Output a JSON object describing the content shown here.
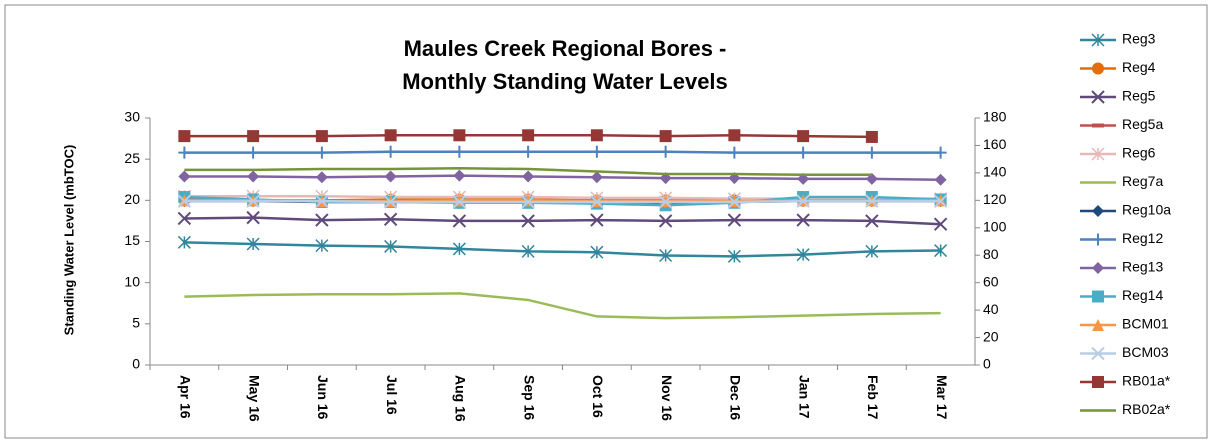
{
  "chart_data": {
    "type": "line",
    "title": [
      "Maules Creek Regional Bores -",
      "Monthly Standing Water Levels"
    ],
    "y_label": "Standing Water Level (mbTOC)",
    "categories": [
      "Apr 16",
      "May 16",
      "Jun 16",
      "Jul 16",
      "Aug 16",
      "Sep 16",
      "Oct 16",
      "Nov 16",
      "Dec 16",
      "Jan 17",
      "Feb 17",
      "Mar 17"
    ],
    "ylim": [
      0,
      30
    ],
    "yticks": [
      0,
      5,
      10,
      15,
      20,
      25,
      30
    ],
    "y2lim": [
      0,
      180
    ],
    "y2ticks": [
      0,
      20,
      40,
      60,
      80,
      100,
      120,
      140,
      160,
      180
    ],
    "grid": false,
    "legend": "right",
    "series": [
      {
        "name": "Reg3",
        "color": "#31859c",
        "marker": "star",
        "values": [
          14.9,
          14.7,
          14.5,
          14.4,
          14.1,
          13.8,
          13.7,
          13.3,
          13.2,
          13.4,
          13.8,
          13.9
        ]
      },
      {
        "name": "Reg4",
        "color": "#e46c0a",
        "marker": "circle",
        "values": [
          20.1,
          20.0,
          20.0,
          20.1,
          20.1,
          20.1,
          20.0,
          20.0,
          20.0,
          20.0,
          20.0,
          20.0
        ]
      },
      {
        "name": "Reg5",
        "color": "#604a7b",
        "marker": "x",
        "values": [
          17.8,
          17.9,
          17.6,
          17.7,
          17.5,
          17.5,
          17.6,
          17.5,
          17.6,
          17.6,
          17.5,
          17.1
        ]
      },
      {
        "name": "Reg5a",
        "color": "#c0504d",
        "marker": "dash",
        "values": [
          null,
          null,
          null,
          null,
          null,
          null,
          null,
          null,
          null,
          null,
          null,
          null
        ]
      },
      {
        "name": "Reg6",
        "color": "#e6b9b8",
        "marker": "star",
        "values": [
          20.5,
          20.5,
          20.5,
          20.4,
          20.4,
          20.4,
          20.3,
          20.3,
          20.2,
          20.2,
          20.2,
          20.2
        ]
      },
      {
        "name": "Reg7a",
        "color": "#9bbb59",
        "marker": "none",
        "values": [
          8.3,
          8.5,
          8.6,
          8.6,
          8.7,
          7.9,
          5.9,
          5.7,
          5.8,
          6.0,
          6.2,
          6.3
        ]
      },
      {
        "name": "Reg10a",
        "color": "#1f497d",
        "marker": "diamond",
        "values": [
          19.9,
          19.9,
          19.8,
          19.8,
          19.8,
          19.8,
          19.7,
          19.7,
          19.8,
          19.9,
          19.9,
          19.9
        ]
      },
      {
        "name": "Reg12",
        "color": "#4f81bd",
        "marker": "plus",
        "values": [
          25.8,
          25.8,
          25.8,
          25.9,
          25.9,
          25.9,
          25.9,
          25.9,
          25.8,
          25.8,
          25.8,
          25.8
        ]
      },
      {
        "name": "Reg13",
        "color": "#8064a2",
        "marker": "diamond",
        "values": [
          22.9,
          22.9,
          22.8,
          22.9,
          23.0,
          22.9,
          22.8,
          22.7,
          22.7,
          22.6,
          22.6,
          22.5
        ]
      },
      {
        "name": "Reg14",
        "color": "#4bacc6",
        "marker": "square",
        "values": [
          20.4,
          20.1,
          19.8,
          19.8,
          19.7,
          19.7,
          19.6,
          19.4,
          19.7,
          20.4,
          20.4,
          20.1
        ]
      },
      {
        "name": "BCM01",
        "color": "#f79646",
        "marker": "triangle",
        "values": [
          20.0,
          20.0,
          19.9,
          19.9,
          20.0,
          20.0,
          19.9,
          19.9,
          19.9,
          20.0,
          20.0,
          20.0
        ]
      },
      {
        "name": "BCM03",
        "color": "#b9cde5",
        "marker": "x",
        "values": [
          19.9,
          19.9,
          19.9,
          19.8,
          19.8,
          19.8,
          19.8,
          19.8,
          19.8,
          19.9,
          19.9,
          19.9
        ]
      },
      {
        "name": "RB01a*",
        "color": "#953735",
        "marker": "square",
        "values": [
          27.8,
          27.8,
          27.8,
          27.9,
          27.9,
          27.9,
          27.9,
          27.8,
          27.9,
          27.8,
          27.7,
          null
        ]
      },
      {
        "name": "RB02a*",
        "color": "#77933c",
        "marker": "none",
        "values": [
          23.7,
          23.7,
          23.8,
          23.8,
          23.9,
          23.8,
          23.5,
          23.2,
          23.2,
          23.1,
          23.1,
          null
        ]
      }
    ]
  }
}
